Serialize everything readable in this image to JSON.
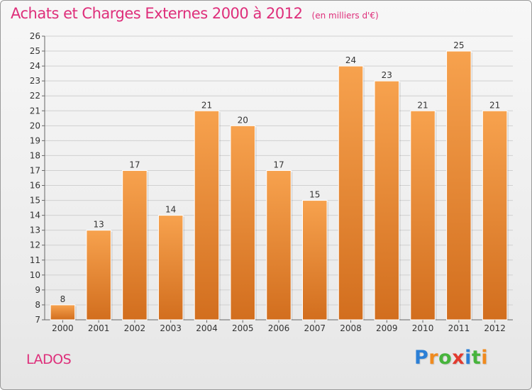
{
  "header": {
    "title": "Achats et Charges Externes 2000 à 2012",
    "subtitle": "(en milliers d'€)"
  },
  "commune": "LADOS",
  "brand": {
    "name": "Proxiti",
    "letters": [
      {
        "ch": "P",
        "color": "#2b7fd6"
      },
      {
        "ch": "r",
        "color": "#f08a1e"
      },
      {
        "ch": "o",
        "color": "#47b43c"
      },
      {
        "ch": "x",
        "color": "#e23b2f"
      },
      {
        "ch": "i",
        "color": "#2b7fd6"
      },
      {
        "ch": "t",
        "color": "#47b43c"
      },
      {
        "ch": "i",
        "color": "#f08a1e"
      }
    ]
  },
  "chart_data": {
    "type": "bar",
    "title": "Achats et Charges Externes 2000 à 2012",
    "subtitle": "(en milliers d'€)",
    "categories": [
      "2000",
      "2001",
      "2002",
      "2003",
      "2004",
      "2005",
      "2006",
      "2007",
      "2008",
      "2009",
      "2010",
      "2011",
      "2012"
    ],
    "values": [
      8,
      13,
      17,
      14,
      21,
      20,
      17,
      15,
      24,
      23,
      21,
      25,
      21
    ],
    "ylim": [
      7,
      26
    ],
    "yticks": [
      7,
      8,
      9,
      10,
      11,
      12,
      13,
      14,
      15,
      16,
      17,
      18,
      19,
      20,
      21,
      22,
      23,
      24,
      25,
      26
    ],
    "grid": true,
    "data_labels": true,
    "colors": {
      "bar_top": "#f7a24e",
      "bar_bottom": "#d26e1e",
      "text": "#333333",
      "grid": "#d0d0d0"
    }
  }
}
